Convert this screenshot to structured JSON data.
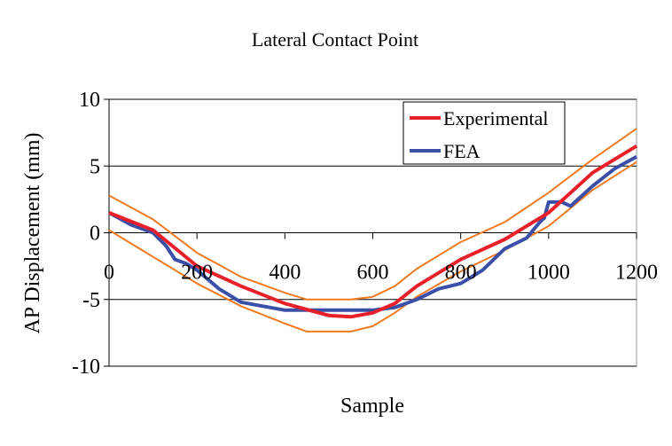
{
  "chart_data": {
    "type": "line",
    "title": "Lateral Contact Point",
    "xlabel": "Sample",
    "ylabel": "AP Displacement (mm)",
    "xlim": [
      0,
      1200
    ],
    "ylim": [
      -10,
      10
    ],
    "xticks": [
      0,
      200,
      400,
      600,
      800,
      1000,
      1200
    ],
    "yticks": [
      10,
      5,
      0,
      -5,
      -10
    ],
    "grid": "horizontal",
    "legend_position": "top-right",
    "series": [
      {
        "name": "Experimental",
        "color": "#e8202a",
        "legend": true,
        "x": [
          0,
          100,
          200,
          300,
          400,
          500,
          550,
          600,
          650,
          700,
          800,
          900,
          1000,
          1100,
          1200
        ],
        "y": [
          1.5,
          0.2,
          -2.5,
          -4.0,
          -5.3,
          -6.2,
          -6.3,
          -6.0,
          -5.3,
          -4.0,
          -2.0,
          -0.5,
          1.5,
          4.5,
          6.5
        ]
      },
      {
        "name": "FEA",
        "color": "#3a4fa8",
        "legend": true,
        "x": [
          0,
          50,
          100,
          130,
          150,
          175,
          200,
          250,
          300,
          400,
          500,
          600,
          650,
          700,
          750,
          800,
          850,
          900,
          950,
          980,
          990,
          1000,
          1030,
          1050,
          1100,
          1150,
          1200
        ],
        "y": [
          1.5,
          0.6,
          0,
          -1.0,
          -2.0,
          -2.3,
          -2.8,
          -4.2,
          -5.2,
          -5.8,
          -5.8,
          -5.8,
          -5.6,
          -5.0,
          -4.2,
          -3.8,
          -2.8,
          -1.2,
          -0.4,
          0.8,
          1.1,
          2.3,
          2.3,
          2.0,
          3.5,
          4.8,
          5.7
        ]
      },
      {
        "name": "Upper bound",
        "color": "#f07a20",
        "legend": false,
        "x": [
          0,
          100,
          200,
          300,
          400,
          450,
          550,
          600,
          650,
          700,
          800,
          900,
          1000,
          1100,
          1200
        ],
        "y": [
          2.8,
          1.0,
          -1.5,
          -3.3,
          -4.5,
          -5.0,
          -5.0,
          -4.8,
          -4.0,
          -2.7,
          -0.7,
          0.8,
          3.0,
          5.5,
          7.8
        ]
      },
      {
        "name": "Lower bound",
        "color": "#f07a20",
        "legend": false,
        "x": [
          0,
          100,
          200,
          300,
          400,
          450,
          550,
          600,
          650,
          700,
          800,
          900,
          1000,
          1100,
          1200
        ],
        "y": [
          0.2,
          -1.8,
          -3.8,
          -5.5,
          -6.8,
          -7.4,
          -7.4,
          -7.0,
          -6.0,
          -4.8,
          -2.9,
          -1.3,
          0.5,
          3.2,
          5.3
        ]
      }
    ]
  }
}
